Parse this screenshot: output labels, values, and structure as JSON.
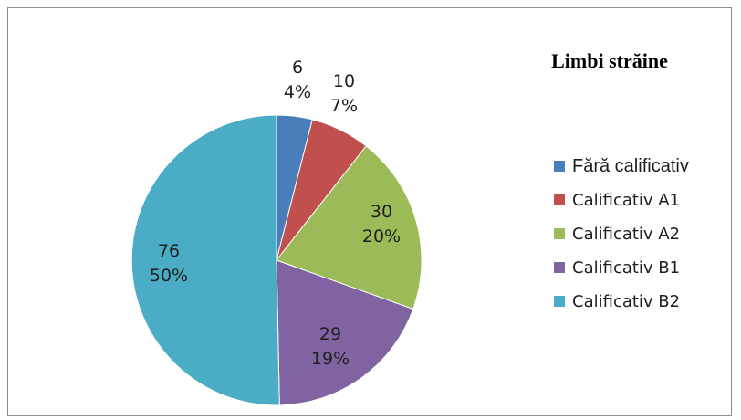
{
  "chart_data": {
    "type": "pie",
    "title": "Limbi străine",
    "legend_position": "right",
    "categories": [
      "Fără calificativ",
      "Calificativ A1",
      "Calificativ A2",
      "Calificativ B1",
      "Calificativ B2"
    ],
    "values": [
      6,
      10,
      30,
      29,
      76
    ],
    "percent_labels": [
      "4%",
      "7%",
      "20%",
      "19%",
      "50%"
    ],
    "colors": [
      "#4a7ebb",
      "#c0504d",
      "#9bbb59",
      "#8064a2",
      "#4bacc6"
    ]
  }
}
